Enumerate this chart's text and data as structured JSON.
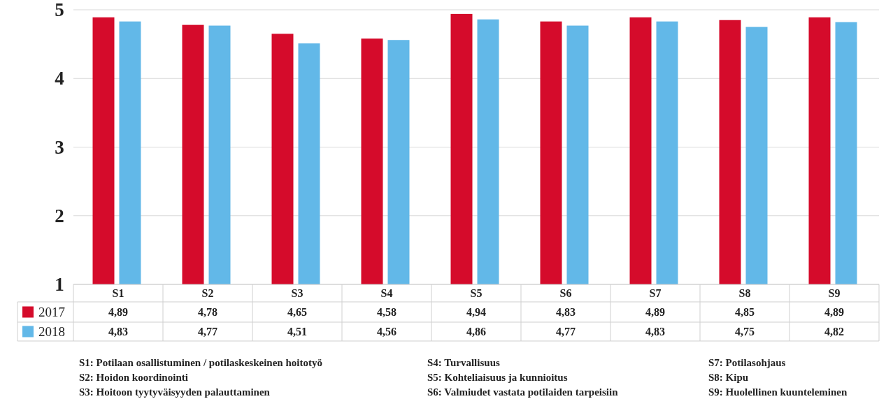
{
  "chart_data": {
    "type": "bar",
    "categories": [
      "S1",
      "S2",
      "S3",
      "S4",
      "S5",
      "S6",
      "S7",
      "S8",
      "S9"
    ],
    "series": [
      {
        "name": "2017",
        "color": "#d50b2b",
        "values": [
          4.89,
          4.78,
          4.65,
          4.58,
          4.94,
          4.83,
          4.89,
          4.85,
          4.89
        ],
        "value_labels": [
          "4,89",
          "4,78",
          "4,65",
          "4,58",
          "4,94",
          "4,83",
          "4,89",
          "4,85",
          "4,89"
        ]
      },
      {
        "name": "2018",
        "color": "#62b8e8",
        "values": [
          4.83,
          4.77,
          4.51,
          4.56,
          4.86,
          4.77,
          4.83,
          4.75,
          4.82
        ],
        "value_labels": [
          "4,83",
          "4,77",
          "4,51",
          "4,56",
          "4,86",
          "4,77",
          "4,83",
          "4,75",
          "4,82"
        ]
      }
    ],
    "ylim": [
      1,
      5
    ],
    "yticks": [
      1,
      2,
      3,
      4,
      5
    ],
    "grid": "y",
    "legend": "bottom left",
    "annotations": [
      "S1: Potilaan osallistuminen / potilaskeskeinen hoitotyö",
      "S2: Hoidon koordinointi",
      "S3: Hoitoon tyytyväisyyden palauttaminen",
      "S4: Turvallisuus",
      "S5: Kohteliaisuus ja kunnioitus",
      "S6: Valmiudet vastata potilaiden tarpeisiin",
      "S7: Potilasohjaus",
      "S8: Kipu",
      "S9: Huolellinen kuunteleminen"
    ]
  }
}
